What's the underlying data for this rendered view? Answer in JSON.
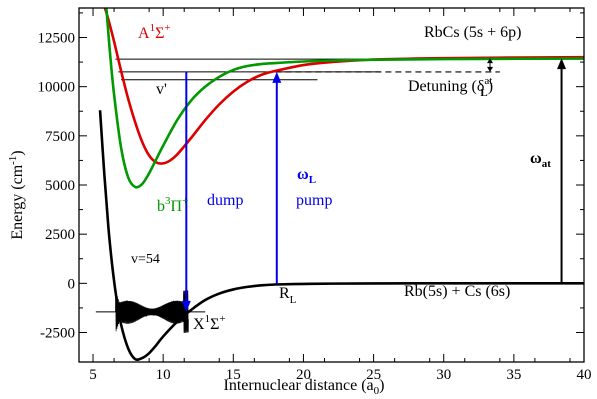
{
  "chart_data": {
    "type": "line",
    "xlabel": "Internuclear distance (a",
    "xlabel_sub": "0",
    "xlabel_end": ")",
    "ylabel": "Energy (cm",
    "ylabel_sup": "-1",
    "ylabel_end": ")",
    "xlim": [
      4,
      40
    ],
    "ylim": [
      -4000,
      14000
    ],
    "xticks": [
      5,
      10,
      15,
      20,
      25,
      30,
      35,
      40
    ],
    "yticks": [
      -2500,
      0,
      2500,
      5000,
      7500,
      10000,
      12500
    ],
    "grid": false,
    "series": [
      {
        "color": "#000000",
        "x": [
          5.5,
          5.8,
          6.1,
          6.4,
          6.7,
          7.0,
          7.5,
          8.0,
          8.5,
          9.0,
          9.5,
          10.0,
          11.0,
          12.0,
          13.0,
          14.0,
          15.0,
          16.0,
          17.0,
          18.0,
          20.0,
          22.0,
          25.0,
          30.0,
          35.0,
          40.0
        ],
        "y": [
          8800,
          5600,
          2800,
          700,
          -900,
          -2100,
          -3300,
          -3850,
          -3800,
          -3550,
          -3150,
          -2700,
          -1950,
          -1350,
          -850,
          -520,
          -310,
          -180,
          -100,
          -60,
          -30,
          -15,
          -5,
          0,
          0,
          0
        ]
      },
      {
        "color": "#dd0000",
        "x": [
          5.85,
          6.1,
          6.5,
          7.0,
          7.5,
          8.0,
          8.5,
          9.0,
          9.5,
          10.0,
          10.5,
          11.0,
          12.0,
          13.0,
          14.0,
          15.0,
          16.0,
          17.0,
          18.0,
          20.0,
          22.0,
          25.0,
          30.0,
          35.0,
          40.0
        ],
        "y": [
          14000,
          13400,
          12300,
          10800,
          9400,
          8200,
          7200,
          6500,
          6150,
          6100,
          6250,
          6550,
          7400,
          8300,
          9100,
          9750,
          10250,
          10600,
          10800,
          11100,
          11250,
          11380,
          11450,
          11480,
          11500
        ]
      },
      {
        "color": "#009900",
        "x": [
          5.95,
          6.2,
          6.5,
          7.0,
          7.5,
          8.0,
          8.5,
          9.0,
          9.5,
          10.0,
          11.0,
          12.0,
          13.0,
          14.0,
          15.0,
          16.0,
          17.0,
          18.0,
          20.0,
          22.0,
          25.0,
          30.0,
          35.0,
          40.0
        ],
        "y": [
          14000,
          11800,
          9600,
          6900,
          5400,
          4900,
          5050,
          5600,
          6300,
          7000,
          8300,
          9300,
          10000,
          10500,
          10850,
          11050,
          11150,
          11200,
          11280,
          11330,
          11370,
          11400,
          11420,
          11430
        ]
      }
    ],
    "vibrational_levels": [
      {
        "x1": 6.6,
        "x2": 29.0,
        "y": 11400
      },
      {
        "x1": 6.8,
        "x2": 25.5,
        "y": 10750
      },
      {
        "x1": 7.0,
        "x2": 21.0,
        "y": 10350
      },
      {
        "x1": 5.2,
        "x2": 13.0,
        "y": -1450
      }
    ],
    "detuning_level": {
      "x1": 18.0,
      "x2": 34.0,
      "y": 10750
    },
    "transitions": [
      {
        "name": "dump",
        "x": 11.65,
        "y_from": 10750,
        "y_to": -1450,
        "color": "#0000ee"
      },
      {
        "name": "pump",
        "x": 18.1,
        "y_from": 0,
        "y_to": 10750,
        "color": "#0000ee"
      },
      {
        "name": "omega_at",
        "x": 38.4,
        "y_from": 0,
        "y_to": 11450,
        "color": "#000000"
      }
    ],
    "wavefunction": {
      "x1": 6.6,
      "x2": 11.8,
      "y_base": -1450,
      "amplitude": 1100
    },
    "annotations": {
      "state_A": {
        "main": "A",
        "sup": "1",
        "tail": "Σ",
        "tail_sup": "+"
      },
      "state_b": {
        "main": "b",
        "sup": "3",
        "tail": "Π",
        "tail_sup": "+"
      },
      "state_X": {
        "main": "X",
        "sup": "1",
        "tail": "Σ",
        "tail_sup": "+"
      },
      "vprime": "v'",
      "v54": "v=54",
      "dump": "dump",
      "omega_L": {
        "main": "ω",
        "sub": "L"
      },
      "pump": "pump",
      "omega_at": {
        "main": "ω",
        "sub": "at"
      },
      "R_L": {
        "main": "R",
        "sub": "L"
      },
      "asymptote_upper": "RbCs (5s + 6p)",
      "asymptote_lower": "Rb(5s) + Cs (6s)",
      "detuning": {
        "main": "Detuning (δ",
        "sup": "at",
        "sub": "L",
        "end": ")"
      }
    },
    "colors": {
      "X": "#000000",
      "A": "#dd0000",
      "b": "#009900",
      "transition": "#0000ee"
    }
  }
}
